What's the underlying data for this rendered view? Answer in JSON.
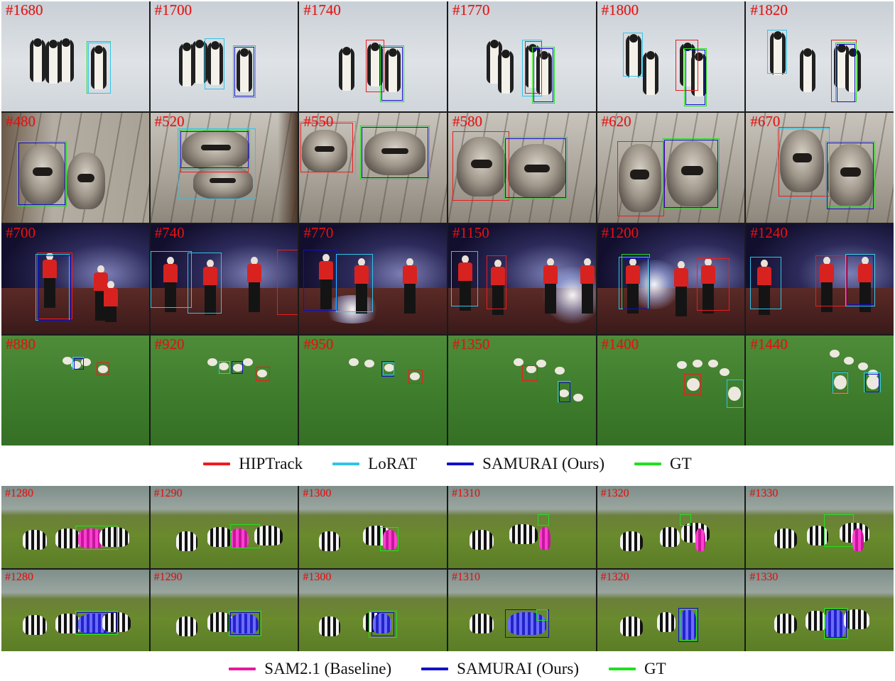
{
  "colors": {
    "hiptrack": "#ee1c1c",
    "lorat": "#2fc4e8",
    "samurai": "#1010cc",
    "gt": "#20e020",
    "sam21": "#e8189a"
  },
  "top_section": {
    "legend": [
      {
        "label": "HIPTrack",
        "color": "#ee1c1c"
      },
      {
        "label": "LoRAT",
        "color": "#2fc4e8"
      },
      {
        "label": "SAMURAI (Ours)",
        "color": "#1010cc"
      },
      {
        "label": "GT",
        "color": "#20e020"
      }
    ],
    "rows": [
      {
        "scene": "penguins",
        "frames": [
          "#1680",
          "#1700",
          "#1740",
          "#1770",
          "#1800",
          "#1820"
        ]
      },
      {
        "scene": "raccoons",
        "frames": [
          "#480",
          "#520",
          "#550",
          "#580",
          "#620",
          "#670"
        ]
      },
      {
        "scene": "dancers",
        "frames": [
          "#700",
          "#740",
          "#770",
          "#1150",
          "#1200",
          "#1240"
        ]
      },
      {
        "scene": "sheep",
        "frames": [
          "#880",
          "#920",
          "#950",
          "#1350",
          "#1400",
          "#1440"
        ]
      }
    ]
  },
  "bottom_section": {
    "legend": [
      {
        "label": "SAM2.1 (Baseline)",
        "color": "#e8189a"
      },
      {
        "label": "SAMURAI (Ours)",
        "color": "#1010cc"
      },
      {
        "label": "GT",
        "color": "#20e020"
      }
    ],
    "rows": [
      {
        "method": "SAM2.1 (Baseline)",
        "frames": [
          "#1280",
          "#1290",
          "#1300",
          "#1310",
          "#1320",
          "#1330"
        ]
      },
      {
        "method": "SAMURAI (Ours)",
        "frames": [
          "#1280",
          "#1290",
          "#1300",
          "#1310",
          "#1320",
          "#1330"
        ]
      }
    ]
  }
}
